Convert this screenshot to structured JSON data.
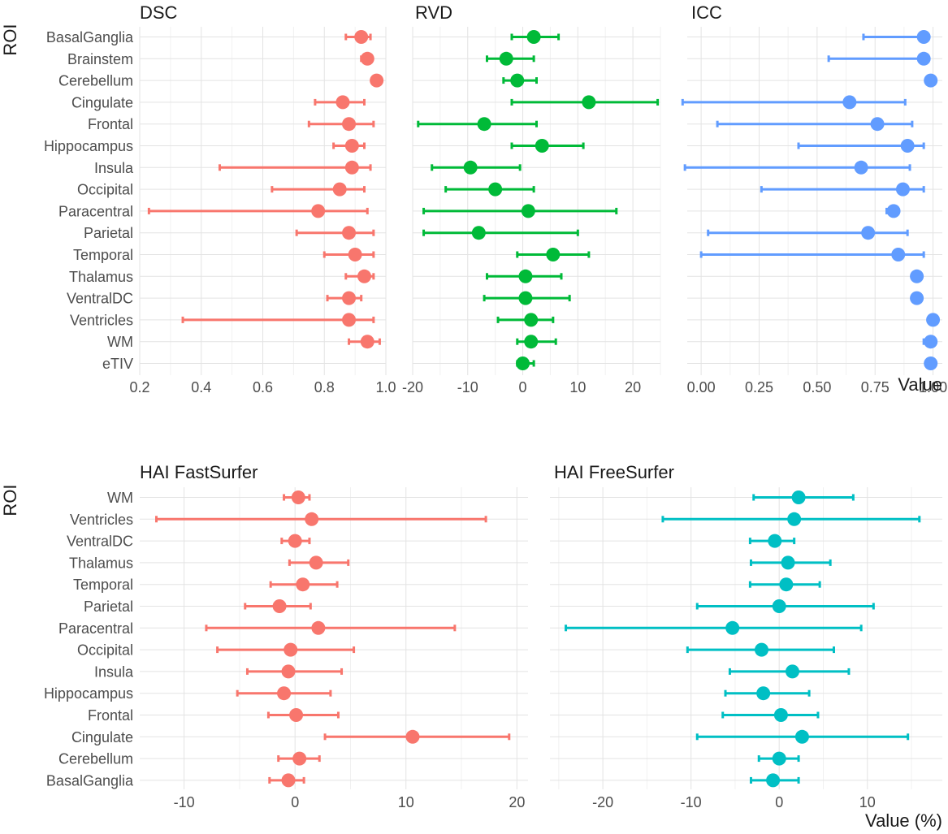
{
  "figure": {
    "row_axis_label": "ROI",
    "top_value_label": "Value",
    "bottom_value_label": "Value (%)"
  },
  "chart_data": [
    {
      "type": "scatter",
      "title": "DSC",
      "color": "#f8766d",
      "xlim": [
        0.2,
        1.0
      ],
      "xticks": [
        0.2,
        0.4,
        0.6,
        0.8,
        1.0
      ],
      "xtick_labels": [
        "0.2",
        "0.4",
        "0.6",
        "0.8",
        "1.0"
      ],
      "categories": [
        "BasalGanglia",
        "Brainstem",
        "Cerebellum",
        "Cingulate",
        "Frontal",
        "Hippocampus",
        "Insula",
        "Occipital",
        "Paracentral",
        "Parietal",
        "Temporal",
        "Thalamus",
        "VentralDC",
        "Ventricles",
        "WM",
        "eTIV"
      ],
      "values": [
        0.92,
        0.94,
        0.97,
        0.86,
        0.88,
        0.89,
        0.89,
        0.85,
        0.78,
        0.88,
        0.9,
        0.93,
        0.88,
        0.88,
        0.94,
        null
      ],
      "lower": [
        0.87,
        0.92,
        null,
        0.77,
        0.75,
        0.83,
        0.46,
        0.63,
        0.23,
        0.71,
        0.8,
        0.87,
        0.81,
        0.34,
        0.88,
        null
      ],
      "upper": [
        0.95,
        0.95,
        null,
        0.93,
        0.96,
        0.93,
        0.95,
        0.93,
        0.94,
        0.96,
        0.96,
        0.96,
        0.92,
        0.96,
        0.98,
        null
      ],
      "grid": true
    },
    {
      "type": "scatter",
      "title": "RVD",
      "color": "#00ba38",
      "xlim": [
        -20,
        25
      ],
      "xticks": [
        -20,
        -10,
        0,
        10,
        20
      ],
      "xtick_labels": [
        "-20",
        "-10",
        "0",
        "10",
        "20"
      ],
      "categories": [
        "BasalGanglia",
        "Brainstem",
        "Cerebellum",
        "Cingulate",
        "Frontal",
        "Hippocampus",
        "Insula",
        "Occipital",
        "Paracentral",
        "Parietal",
        "Temporal",
        "Thalamus",
        "VentralDC",
        "Ventricles",
        "WM",
        "eTIV"
      ],
      "values": [
        2.0,
        -3.0,
        -1.0,
        12.0,
        -7.0,
        3.5,
        -9.5,
        -5.0,
        1.0,
        -8.0,
        5.5,
        0.5,
        0.5,
        1.5,
        1.5,
        0.0
      ],
      "lower": [
        -2.0,
        -6.5,
        -3.5,
        -2.0,
        -19.0,
        -2.0,
        -16.5,
        -14.0,
        -18.0,
        -18.0,
        -1.0,
        -6.5,
        -7.0,
        -4.5,
        -1.0,
        -1.0
      ],
      "upper": [
        6.5,
        2.0,
        2.5,
        24.5,
        2.5,
        11.0,
        -0.5,
        2.0,
        17.0,
        10.0,
        12.0,
        7.0,
        8.5,
        5.5,
        6.0,
        2.0
      ],
      "grid": true
    },
    {
      "type": "scatter",
      "title": "ICC",
      "color": "#619cff",
      "xlim": [
        -0.06,
        1.04
      ],
      "xticks": [
        0.0,
        0.25,
        0.5,
        0.75,
        1.0
      ],
      "xtick_labels": [
        "0.00",
        "0.25",
        "0.50",
        "0.75",
        "1.00"
      ],
      "xlabel": "Value",
      "categories": [
        "BasalGanglia",
        "Brainstem",
        "Cerebellum",
        "Cingulate",
        "Frontal",
        "Hippocampus",
        "Insula",
        "Occipital",
        "Paracentral",
        "Parietal",
        "Temporal",
        "Thalamus",
        "VentralDC",
        "Ventricles",
        "WM",
        "eTIV"
      ],
      "values": [
        0.96,
        0.96,
        0.99,
        0.64,
        0.76,
        0.89,
        0.69,
        0.87,
        0.83,
        0.72,
        0.85,
        0.93,
        0.93,
        1.0,
        0.99,
        0.99
      ],
      "lower": [
        0.7,
        0.55,
        null,
        -0.08,
        0.07,
        0.42,
        -0.07,
        0.26,
        0.8,
        0.03,
        0.0,
        null,
        null,
        null,
        0.96,
        null
      ],
      "upper": [
        0.98,
        0.98,
        null,
        0.88,
        0.91,
        0.96,
        0.9,
        0.96,
        0.84,
        0.89,
        0.96,
        null,
        null,
        null,
        1.0,
        null
      ],
      "grid": true
    },
    {
      "type": "scatter",
      "title": "HAI FastSurfer",
      "color": "#f8766d",
      "xlim": [
        -14,
        21
      ],
      "xticks": [
        -10,
        0,
        10,
        20
      ],
      "xtick_labels": [
        "-10",
        "0",
        "10",
        "20"
      ],
      "categories": [
        "WM",
        "Ventricles",
        "VentralDC",
        "Thalamus",
        "Temporal",
        "Parietal",
        "Paracentral",
        "Occipital",
        "Insula",
        "Hippocampus",
        "Frontal",
        "Cingulate",
        "Cerebellum",
        "BasalGanglia"
      ],
      "values": [
        0.3,
        1.5,
        0.0,
        1.9,
        0.7,
        -1.4,
        2.1,
        -0.4,
        -0.6,
        -1.0,
        0.1,
        10.6,
        0.4,
        -0.6
      ],
      "lower": [
        -1.0,
        -12.5,
        -1.2,
        -0.5,
        -2.2,
        -4.5,
        -8.0,
        -7.0,
        -4.3,
        -5.2,
        -2.4,
        2.7,
        -1.5,
        -2.3
      ],
      "upper": [
        1.3,
        17.2,
        1.3,
        4.8,
        3.8,
        1.4,
        14.4,
        5.3,
        4.2,
        3.2,
        3.9,
        19.3,
        2.2,
        0.8
      ],
      "grid": true
    },
    {
      "type": "scatter",
      "title": "HAI FreeSurfer",
      "color": "#00bfc4",
      "xlim": [
        -26,
        18.5
      ],
      "xticks": [
        -20,
        -10,
        0,
        10
      ],
      "xtick_labels": [
        "-20",
        "-10",
        "0",
        "10"
      ],
      "xlabel": "Value (%)",
      "categories": [
        "WM",
        "Ventricles",
        "VentralDC",
        "Thalamus",
        "Temporal",
        "Parietal",
        "Paracentral",
        "Occipital",
        "Insula",
        "Hippocampus",
        "Frontal",
        "Cingulate",
        "Cerebellum",
        "BasalGanglia"
      ],
      "values": [
        2.2,
        1.7,
        -0.5,
        1.0,
        0.8,
        0.0,
        -5.3,
        -2.0,
        1.5,
        -1.8,
        0.2,
        2.6,
        0.0,
        -0.7
      ],
      "lower": [
        -2.9,
        -13.2,
        -3.3,
        -3.2,
        -3.3,
        -9.3,
        -24.2,
        -10.4,
        -5.6,
        -6.1,
        -6.4,
        -9.3,
        -2.3,
        -3.2
      ],
      "upper": [
        8.4,
        15.9,
        1.7,
        5.8,
        4.6,
        10.7,
        9.3,
        6.2,
        7.9,
        3.4,
        4.4,
        14.6,
        2.2,
        2.2
      ],
      "grid": true
    }
  ]
}
